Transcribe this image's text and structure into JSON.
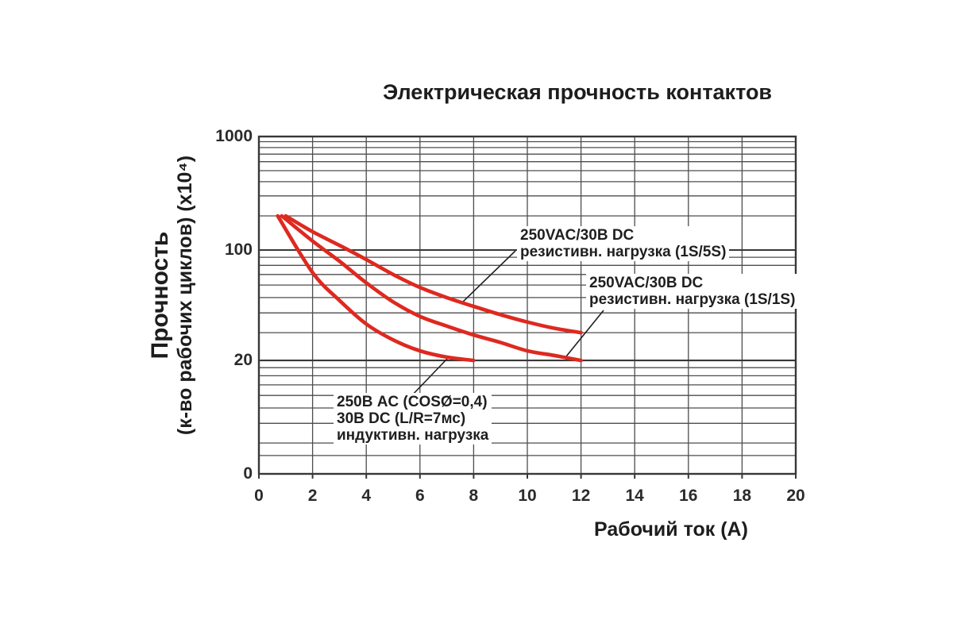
{
  "page": {
    "background": "#ffffff"
  },
  "chart": {
    "title": "Электрическая прочность контактов",
    "x_axis": {
      "label": "Рабочий ток (А)"
    },
    "y_axis": {
      "label_line1": "Прочность",
      "label_line2": "(к-во рабочих циклов) (x10⁴)"
    },
    "colors": {
      "curve": "#de2920",
      "grid": "#4d4d4d",
      "frame": "#383838",
      "leader": "#1f1f1f",
      "text": "#1d1d1d"
    }
  },
  "chart_data": {
    "type": "line",
    "title": "Электрическая прочность контактов",
    "xlabel": "Рабочий ток (А)",
    "ylabel": "Прочность (к-во рабочих циклов) (x10⁴)",
    "x_range": [
      0,
      20
    ],
    "y_scale": "log",
    "grid": true,
    "x_ticks": [
      0,
      2,
      4,
      6,
      8,
      10,
      12,
      14,
      16,
      18,
      20
    ],
    "y_ticks": [
      {
        "label": "1000",
        "value": 1000
      },
      {
        "label": "100",
        "value": 100
      },
      {
        "label": "20",
        "value": 20
      },
      {
        "label": "0",
        "value": null
      }
    ],
    "y_minor_gridlines": [
      900,
      800,
      700,
      600,
      500,
      400,
      300,
      200,
      90,
      80,
      70,
      60,
      50,
      40,
      30,
      18,
      16,
      14,
      12,
      10,
      8,
      6,
      5
    ],
    "x_gridlines": [
      2,
      4,
      6,
      8,
      10,
      12,
      14,
      16,
      18
    ],
    "series": [
      {
        "name": "250VAC/30В DC резистивн. нагрузка (1S/5S)",
        "points": [
          [
            1.0,
            200
          ],
          [
            2,
            145
          ],
          [
            3,
            110
          ],
          [
            4,
            87
          ],
          [
            5,
            70
          ],
          [
            6,
            58
          ],
          [
            7,
            50
          ],
          [
            8,
            44
          ],
          [
            9,
            39
          ],
          [
            10,
            35
          ],
          [
            11,
            32
          ],
          [
            12,
            30
          ]
        ]
      },
      {
        "name": "250VAC/30В DC резистивн. нагрузка (1S/1S)",
        "points": [
          [
            0.85,
            200
          ],
          [
            2,
            120
          ],
          [
            3,
            85
          ],
          [
            4,
            62
          ],
          [
            5,
            47
          ],
          [
            6,
            38
          ],
          [
            7,
            33
          ],
          [
            8,
            29
          ],
          [
            9,
            26
          ],
          [
            10,
            23
          ],
          [
            11,
            21.5
          ],
          [
            12,
            20
          ]
        ]
      },
      {
        "name": "250В AC (COSØ=0,4) 30В DC (L/R=7мс) индуктивн. нагрузка",
        "points": [
          [
            0.7,
            200
          ],
          [
            2,
            72
          ],
          [
            3,
            48
          ],
          [
            4,
            34
          ],
          [
            5,
            27
          ],
          [
            6,
            23
          ],
          [
            7,
            21
          ],
          [
            8,
            20
          ]
        ]
      }
    ],
    "annotations": [
      {
        "id": "resistive-1s5s",
        "lines": [
          "250VAC/30В DC",
          "резистивн. нагрузка (1S/5S)"
        ],
        "series": 0
      },
      {
        "id": "resistive-1s1s",
        "lines": [
          "250VAC/30В DC",
          "резистивн. нагрузка (1S/1S)"
        ],
        "series": 1
      },
      {
        "id": "inductive",
        "lines": [
          "250В AC (COSØ=0,4)",
          "30В DC (L/R=7мс)",
          "индуктивн. нагрузка"
        ],
        "series": 2
      }
    ]
  }
}
